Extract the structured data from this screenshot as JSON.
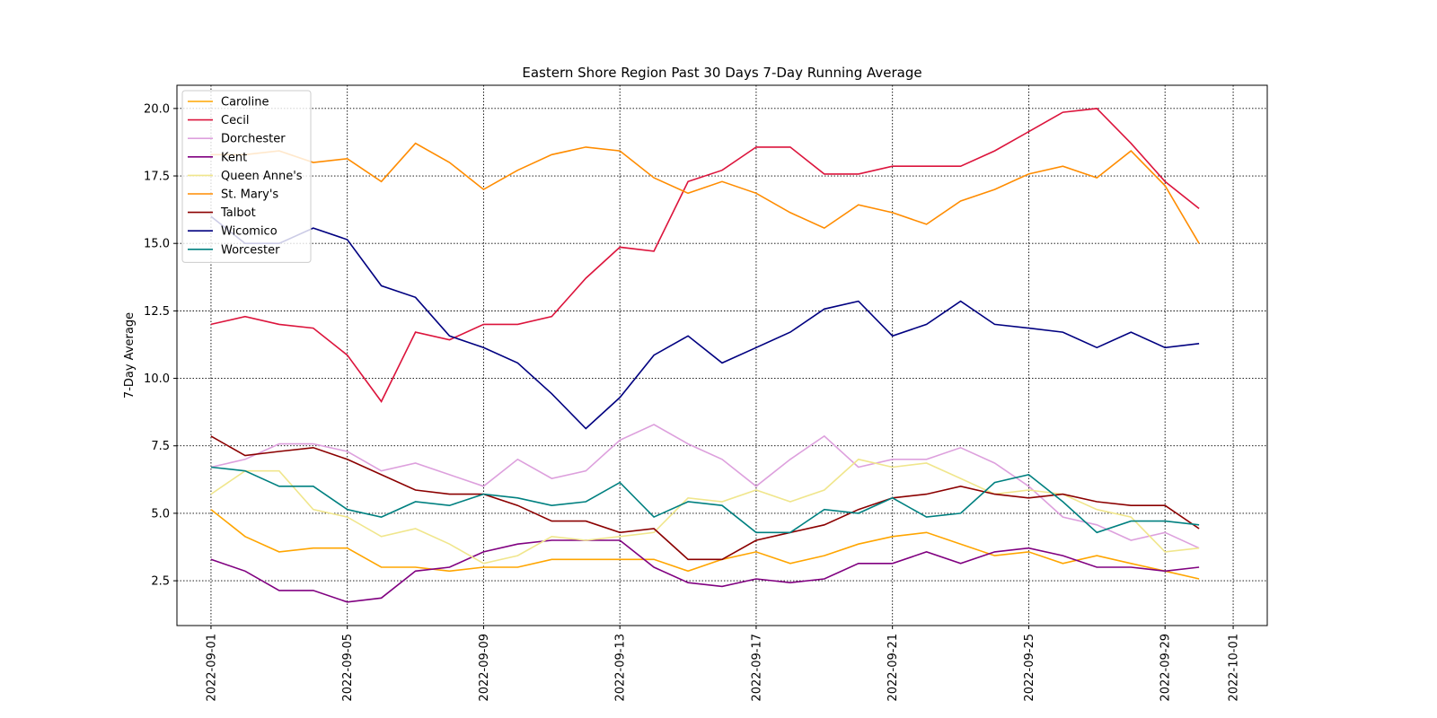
{
  "chart_data": {
    "type": "line",
    "title": "Eastern Shore Region Past 30 Days 7-Day Running Average",
    "y_label": "7-Day Average",
    "x": [
      "2022-09-01",
      "2022-09-02",
      "2022-09-03",
      "2022-09-04",
      "2022-09-05",
      "2022-09-06",
      "2022-09-07",
      "2022-09-08",
      "2022-09-09",
      "2022-09-10",
      "2022-09-11",
      "2022-09-12",
      "2022-09-13",
      "2022-09-14",
      "2022-09-15",
      "2022-09-16",
      "2022-09-17",
      "2022-09-18",
      "2022-09-19",
      "2022-09-20",
      "2022-09-21",
      "2022-09-22",
      "2022-09-23",
      "2022-09-24",
      "2022-09-25",
      "2022-09-26",
      "2022-09-27",
      "2022-09-28",
      "2022-09-29",
      "2022-09-30"
    ],
    "xlim": [
      "2022-08-31",
      "2022-10-02"
    ],
    "xticks": [
      "2022-09-01",
      "2022-09-05",
      "2022-09-09",
      "2022-09-13",
      "2022-09-17",
      "2022-09-21",
      "2022-09-25",
      "2022-09-29",
      "2022-10-01"
    ],
    "ylim": [
      0.84,
      20.86
    ],
    "yticks": [
      {
        "value": 2.5,
        "label": "2.5"
      },
      {
        "value": 5,
        "label": "5.0"
      },
      {
        "value": 7.5,
        "label": "7.5"
      },
      {
        "value": 10,
        "label": "10.0"
      },
      {
        "value": 12.5,
        "label": "12.5"
      },
      {
        "value": 15,
        "label": "15.0"
      },
      {
        "value": 17.5,
        "label": "17.5"
      },
      {
        "value": 20,
        "label": "20.0"
      }
    ],
    "grid": true,
    "legend": "upper left",
    "series": [
      {
        "name": "Caroline",
        "color": "#ffa500",
        "values": [
          5.14,
          4.14,
          3.57,
          3.71,
          3.71,
          3.0,
          3.0,
          2.86,
          3.0,
          3.0,
          3.29,
          3.29,
          3.29,
          3.29,
          2.86,
          3.29,
          3.57,
          3.14,
          3.43,
          3.86,
          4.14,
          4.29,
          3.86,
          3.43,
          3.57,
          3.14,
          3.43,
          3.14,
          2.86,
          2.57
        ]
      },
      {
        "name": "Cecil",
        "color": "#dc143c",
        "values": [
          12.0,
          12.29,
          12.0,
          11.86,
          10.86,
          9.14,
          11.71,
          11.43,
          12.0,
          12.0,
          12.29,
          13.71,
          14.86,
          14.71,
          17.29,
          17.71,
          18.57,
          18.57,
          17.57,
          17.57,
          17.86,
          17.86,
          17.86,
          18.43,
          19.14,
          19.86,
          20.0,
          18.71,
          17.29,
          16.29
        ]
      },
      {
        "name": "Dorchester",
        "color": "#dda0dd",
        "values": [
          6.71,
          7.0,
          7.57,
          7.57,
          7.29,
          6.57,
          6.86,
          6.43,
          6.0,
          7.0,
          6.29,
          6.57,
          7.71,
          8.29,
          7.57,
          7.0,
          6.0,
          7.0,
          7.86,
          6.71,
          7.0,
          7.0,
          7.43,
          6.86,
          6.0,
          4.86,
          4.57,
          4.0,
          4.29,
          3.71
        ]
      },
      {
        "name": "Kent",
        "color": "#800080",
        "values": [
          3.29,
          2.86,
          2.14,
          2.14,
          1.71,
          1.86,
          2.86,
          3.0,
          3.57,
          3.86,
          4.0,
          4.0,
          4.0,
          3.0,
          2.43,
          2.29,
          2.57,
          2.43,
          2.57,
          3.14,
          3.14,
          3.57,
          3.14,
          3.57,
          3.71,
          3.43,
          3.0,
          3.0,
          2.86,
          3.0
        ]
      },
      {
        "name": "Queen Anne's",
        "color": "#f0e68c",
        "values": [
          5.71,
          6.57,
          6.57,
          5.14,
          4.86,
          4.14,
          4.43,
          3.86,
          3.14,
          3.43,
          4.14,
          4.0,
          4.14,
          4.29,
          5.57,
          5.43,
          5.86,
          5.43,
          5.86,
          7.0,
          6.71,
          6.86,
          6.29,
          5.71,
          5.86,
          5.71,
          5.14,
          4.86,
          3.57,
          3.71
        ]
      },
      {
        "name": "St. Mary's",
        "color": "#ff8c00",
        "values": [
          18.29,
          18.29,
          18.43,
          18.0,
          18.14,
          17.29,
          18.71,
          18.0,
          17.0,
          17.71,
          18.29,
          18.57,
          18.43,
          17.43,
          16.86,
          17.29,
          16.86,
          16.14,
          15.57,
          16.43,
          16.14,
          15.71,
          16.57,
          17.0,
          17.57,
          17.86,
          17.43,
          18.43,
          17.14,
          15.0
        ]
      },
      {
        "name": "Talbot",
        "color": "#8b0000",
        "values": [
          7.86,
          7.14,
          7.29,
          7.43,
          7.0,
          6.43,
          5.86,
          5.71,
          5.71,
          5.29,
          4.71,
          4.71,
          4.29,
          4.43,
          3.29,
          3.29,
          4.0,
          4.29,
          4.57,
          5.14,
          5.57,
          5.71,
          6.0,
          5.71,
          5.57,
          5.71,
          5.43,
          5.29,
          5.29,
          4.43
        ]
      },
      {
        "name": "Wicomico",
        "color": "#000080",
        "values": [
          16.0,
          15.0,
          15.0,
          15.57,
          15.14,
          13.43,
          13.0,
          11.57,
          11.14,
          10.57,
          9.43,
          8.14,
          9.29,
          10.86,
          11.57,
          10.57,
          11.14,
          11.71,
          12.57,
          12.86,
          11.57,
          12.0,
          12.86,
          12.0,
          11.86,
          11.71,
          11.14,
          11.71,
          11.14,
          11.29
        ]
      },
      {
        "name": "Worcester",
        "color": "#008080",
        "values": [
          6.71,
          6.57,
          6.0,
          6.0,
          5.14,
          4.86,
          5.43,
          5.29,
          5.71,
          5.57,
          5.29,
          5.43,
          6.14,
          4.86,
          5.43,
          5.29,
          4.29,
          4.29,
          5.14,
          5.0,
          5.57,
          4.86,
          5.0,
          6.14,
          6.43,
          5.43,
          4.29,
          4.71,
          4.71,
          4.57
        ]
      }
    ]
  }
}
